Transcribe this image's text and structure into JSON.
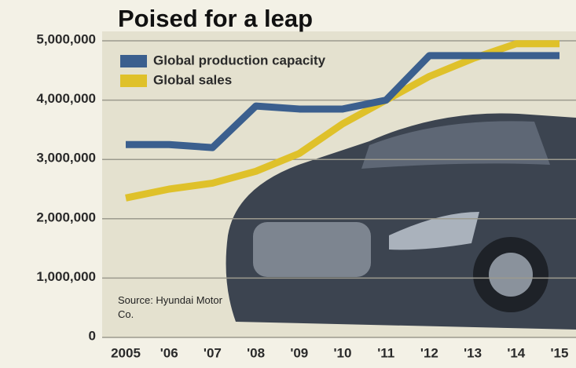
{
  "chart_data": {
    "type": "line",
    "title": "Poised for a leap",
    "source": "Source: Hyundai Motor Co.",
    "categories": [
      "2005",
      "'06",
      "'07",
      "'08",
      "'09",
      "'10",
      "'11",
      "'12",
      "'13",
      "'14",
      "'15"
    ],
    "series": [
      {
        "name": "Global production capacity",
        "color": "#3b5f8e",
        "values": [
          3250000,
          3250000,
          3200000,
          3900000,
          3850000,
          3850000,
          4000000,
          4750000,
          4750000,
          4750000,
          4750000
        ]
      },
      {
        "name": "Global sales",
        "color": "#dfc12a",
        "values": [
          2350000,
          2500000,
          2600000,
          2800000,
          3100000,
          3600000,
          4000000,
          4400000,
          4700000,
          4950000,
          4950000
        ]
      }
    ],
    "ylim": [
      0,
      5000000
    ],
    "yticks": [
      0,
      {
        "value": 1000000,
        "label": "1,000,000"
      },
      {
        "value": 2000000,
        "label": "2,000,000"
      },
      {
        "value": 3000000,
        "label": "3,000,000"
      },
      {
        "value": 4000000,
        "label": "4,000,000"
      },
      {
        "value": 5000000,
        "label": "5,000,000"
      }
    ],
    "grid": true,
    "legend": "top-left"
  }
}
